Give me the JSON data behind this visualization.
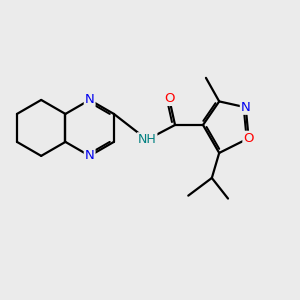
{
  "bg_color": "#ebebeb",
  "bond_color": "#000000",
  "bond_width": 1.6,
  "atom_colors": {
    "N": "#0000ee",
    "O": "#ff0000",
    "NH": "#008080",
    "C": "#000000"
  },
  "font_size": 9.5
}
